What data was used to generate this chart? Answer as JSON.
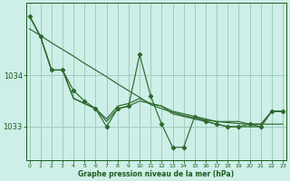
{
  "x": [
    0,
    1,
    2,
    3,
    4,
    5,
    6,
    7,
    8,
    9,
    10,
    11,
    12,
    13,
    14,
    15,
    16,
    17,
    18,
    19,
    20,
    21,
    22,
    23
  ],
  "line_main": [
    1035.15,
    1034.75,
    1034.1,
    1034.1,
    1033.7,
    1033.5,
    1033.35,
    1033.0,
    1033.35,
    1033.4,
    1034.4,
    1033.6,
    1033.05,
    1032.6,
    1032.6,
    1033.2,
    1033.1,
    1033.05,
    1033.0,
    1033.0,
    1033.05,
    1033.0,
    1033.3,
    1033.3
  ],
  "line_upper": [
    1035.15,
    1034.75,
    1034.1,
    1034.1,
    1033.55,
    1033.45,
    1033.35,
    1033.15,
    1033.4,
    1033.45,
    1033.55,
    1033.45,
    1033.4,
    1033.3,
    1033.25,
    1033.2,
    1033.15,
    1033.1,
    1033.1,
    1033.1,
    1033.05,
    1033.05,
    1033.3,
    1033.3
  ],
  "line_lower": [
    1035.15,
    1034.75,
    1034.1,
    1034.1,
    1033.55,
    1033.45,
    1033.35,
    1033.1,
    1033.35,
    1033.4,
    1033.5,
    1033.45,
    1033.4,
    1033.25,
    1033.2,
    1033.15,
    1033.1,
    1033.05,
    1033.0,
    1033.0,
    1033.0,
    1033.0,
    1033.3,
    1033.3
  ],
  "line_trend": [
    1034.9,
    1034.77,
    1034.63,
    1034.5,
    1034.37,
    1034.23,
    1034.1,
    1033.97,
    1033.83,
    1033.7,
    1033.57,
    1033.43,
    1033.35,
    1033.28,
    1033.22,
    1033.17,
    1033.13,
    1033.1,
    1033.08,
    1033.06,
    1033.05,
    1033.05,
    1033.05,
    1033.05
  ],
  "bg_color": "#ceeee8",
  "line_color": "#2d6a2d",
  "grid_color": "#a0ccbb",
  "text_color": "#1a5c1a",
  "xlabel": "Graphe pression niveau de la mer (hPa)",
  "ylim_min": 1032.35,
  "ylim_max": 1035.4,
  "yticks": [
    1033,
    1034
  ],
  "xticks": [
    0,
    1,
    2,
    3,
    4,
    5,
    6,
    7,
    8,
    9,
    10,
    11,
    12,
    13,
    14,
    15,
    16,
    17,
    18,
    19,
    20,
    21,
    22,
    23
  ]
}
